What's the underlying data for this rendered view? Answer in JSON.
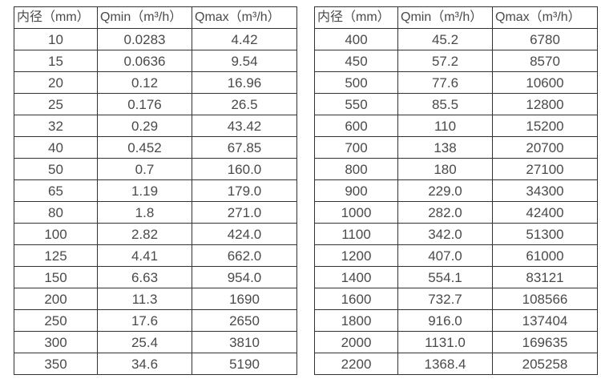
{
  "colors": {
    "background": "#ffffff",
    "border": "#323232",
    "text": "#4a4a4a"
  },
  "tables": [
    {
      "name": "small-diameters",
      "headers": [
        "内径（mm）",
        "Qmin（m³/h）",
        "Qmax（m³/h）"
      ],
      "rows": [
        [
          "10",
          "0.0283",
          "4.42"
        ],
        [
          "15",
          "0.0636",
          "9.54"
        ],
        [
          "20",
          "0.12",
          "16.96"
        ],
        [
          "25",
          "0.176",
          "26.5"
        ],
        [
          "32",
          "0.29",
          "43.42"
        ],
        [
          "40",
          "0.452",
          "67.85"
        ],
        [
          "50",
          "0.7",
          "160.0"
        ],
        [
          "65",
          "1.19",
          "179.0"
        ],
        [
          "80",
          "1.8",
          "271.0"
        ],
        [
          "100",
          "2.82",
          "424.0"
        ],
        [
          "125",
          "4.41",
          "662.0"
        ],
        [
          "150",
          "6.63",
          "954.0"
        ],
        [
          "200",
          "11.3",
          "1690"
        ],
        [
          "250",
          "17.6",
          "2650"
        ],
        [
          "300",
          "25.4",
          "3810"
        ],
        [
          "350",
          "34.6",
          "5190"
        ]
      ]
    },
    {
      "name": "large-diameters",
      "headers": [
        "内径（mm）",
        "Qmin（m³/h）",
        "Qmax（m³/h）"
      ],
      "rows": [
        [
          "400",
          "45.2",
          "6780"
        ],
        [
          "450",
          "57.2",
          "8570"
        ],
        [
          "500",
          "77.6",
          "10600"
        ],
        [
          "550",
          "85.5",
          "12800"
        ],
        [
          "600",
          "110",
          "15200"
        ],
        [
          "700",
          "138",
          "20700"
        ],
        [
          "800",
          "180",
          "27100"
        ],
        [
          "900",
          "229.0",
          "34300"
        ],
        [
          "1000",
          "282.0",
          "42400"
        ],
        [
          "1100",
          "342.0",
          "51300"
        ],
        [
          "1200",
          "407.0",
          "61000"
        ],
        [
          "1400",
          "554.1",
          "83121"
        ],
        [
          "1600",
          "732.7",
          "108566"
        ],
        [
          "1800",
          "916.0",
          "137404"
        ],
        [
          "2000",
          "1131.0",
          "169635"
        ],
        [
          "2200",
          "1368.4",
          "205258"
        ]
      ]
    }
  ]
}
